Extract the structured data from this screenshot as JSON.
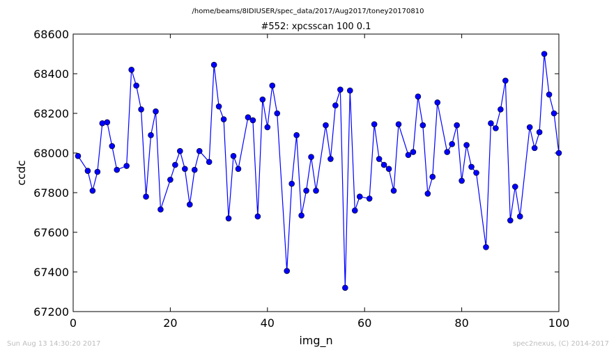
{
  "header": {
    "suptitle": "/home/beams/8IDIUSER/spec_data/2017/Aug2017/toney20170810"
  },
  "footer": {
    "timestamp": "Sun Aug 13 14:30:20 2017",
    "credit": "spec2nexus, (C) 2014-2017"
  },
  "colors": {
    "line": "#0000ff",
    "marker": "#0000ff",
    "axes": "#000000"
  },
  "chart_data": {
    "type": "line",
    "title": "#552: xpcsscan 100 0.1",
    "xlabel": "img_n",
    "ylabel": "ccdc",
    "xlim": [
      0,
      100
    ],
    "ylim": [
      67200,
      68600
    ],
    "xticks": [
      0,
      20,
      40,
      60,
      80,
      100
    ],
    "yticks": [
      67200,
      67400,
      67600,
      67800,
      68000,
      68200,
      68400,
      68600
    ],
    "xtick_labels": [
      "0",
      "20",
      "40",
      "60",
      "80",
      "100"
    ],
    "ytick_labels": [
      "67200",
      "67400",
      "67600",
      "67800",
      "68000",
      "68200",
      "68400",
      "68600"
    ],
    "grid": false,
    "marker": "circle",
    "series": [
      {
        "x": [
          1,
          3,
          4,
          5,
          6,
          7,
          8,
          9,
          11,
          12,
          13,
          14,
          15,
          16,
          17,
          18,
          20,
          21,
          22,
          23,
          24,
          25,
          26,
          28,
          29,
          30,
          31,
          32,
          33,
          34,
          36,
          37,
          38,
          39,
          40,
          41,
          42,
          44,
          45,
          46,
          47,
          48,
          49,
          50,
          52,
          53,
          54,
          55,
          56,
          57,
          58,
          59,
          61,
          62,
          63,
          64,
          65,
          66,
          67,
          69,
          70,
          71,
          72,
          73,
          74,
          75,
          77,
          78,
          79,
          80,
          81,
          82,
          83,
          85,
          86,
          87,
          88,
          89,
          90,
          91,
          92,
          94,
          95,
          96,
          97,
          98,
          99,
          100
        ],
        "values": [
          67985,
          67910,
          67810,
          67905,
          68150,
          68155,
          68035,
          67915,
          67935,
          68420,
          68340,
          68220,
          67780,
          68090,
          68210,
          67715,
          67865,
          67940,
          68010,
          67920,
          67740,
          67915,
          68010,
          67955,
          68445,
          68235,
          68170,
          67670,
          67985,
          67920,
          68180,
          68165,
          67680,
          68270,
          68130,
          68340,
          68200,
          67405,
          67845,
          68090,
          67685,
          67810,
          67980,
          67810,
          68140,
          67970,
          68240,
          68320,
          67320,
          68315,
          67710,
          67780,
          67770,
          68145,
          67970,
          67940,
          67920,
          67810,
          68145,
          67990,
          68005,
          68285,
          68140,
          67795,
          67880,
          68255,
          68005,
          68045,
          68140,
          67860,
          68040,
          67930,
          67900,
          67525,
          68150,
          68125,
          68220,
          68365,
          67660,
          67830,
          67680,
          68130,
          68025,
          68105,
          68500,
          68295,
          68200,
          68000
        ]
      }
    ]
  }
}
